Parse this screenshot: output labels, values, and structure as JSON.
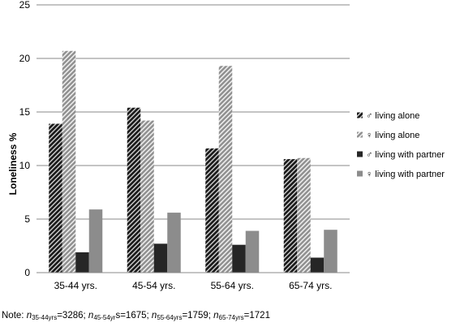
{
  "chart_data": {
    "type": "bar",
    "ylabel": "Loneliness %",
    "ylim": [
      0,
      25
    ],
    "yticks": [
      0,
      5,
      10,
      15,
      20,
      25
    ],
    "grid": true,
    "legend_position": "right",
    "categories": [
      "35-44 yrs.",
      "45-54 yrs.",
      "55-64 yrs.",
      "65-74 yrs."
    ],
    "series": [
      {
        "name": "♂ living alone",
        "values": [
          13.9,
          15.4,
          11.6,
          10.6
        ],
        "color": "#1a1a1a",
        "pattern": "dark-hatch"
      },
      {
        "name": "♀ living alone",
        "values": [
          20.7,
          14.2,
          19.3,
          10.7
        ],
        "color": "#9a9a9a",
        "pattern": "light-hatch"
      },
      {
        "name": "♂ living with partner",
        "values": [
          1.9,
          2.7,
          2.6,
          1.4
        ],
        "color": "#262626",
        "pattern": "solid"
      },
      {
        "name": "♀ living with partner",
        "values": [
          5.9,
          5.6,
          3.9,
          4.0
        ],
        "color": "#8c8c8c",
        "pattern": "solid"
      }
    ]
  },
  "note": {
    "prefix": "Note: ",
    "items": [
      {
        "var": "n",
        "sub": "35-44yrs",
        "suffix": "=3286",
        "sep": "; "
      },
      {
        "var": "n",
        "sub": "45-54yr",
        "suffix": "s=1675",
        "sep": "; "
      },
      {
        "var": "n",
        "sub": "55-64yrs",
        "suffix": "=1759",
        "sep": "; "
      },
      {
        "var": "n",
        "sub": "65-74yrs",
        "suffix": "=1721",
        "sep": ""
      }
    ]
  }
}
